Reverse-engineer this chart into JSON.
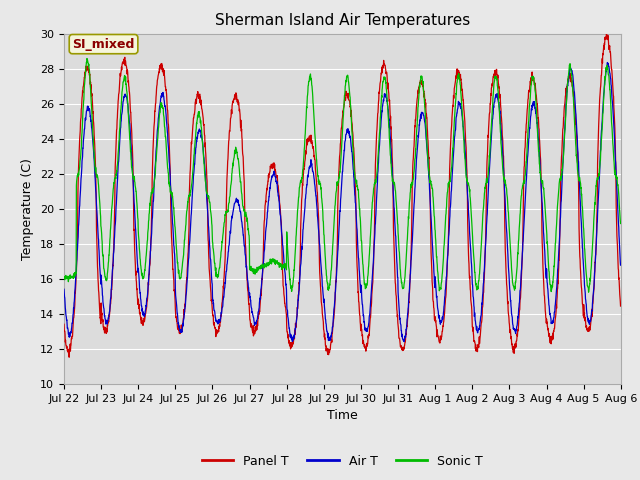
{
  "title": "Sherman Island Air Temperatures",
  "xlabel": "Time",
  "ylabel": "Temperature (C)",
  "ylim": [
    10,
    30
  ],
  "xlim": [
    0,
    15
  ],
  "fig_width": 6.4,
  "fig_height": 4.8,
  "dpi": 100,
  "background_color": "#e8e8e8",
  "plot_bg_color": "#dcdcdc",
  "grid_color": "#ffffff",
  "annotation_text": "SI_mixed",
  "annotation_bg": "#f5f5dc",
  "annotation_border": "#999900",
  "annotation_text_color": "#8b0000",
  "xtick_labels": [
    "Jul 22",
    "Jul 23",
    "Jul 24",
    "Jul 25",
    "Jul 26",
    "Jul 27",
    "Jul 28",
    "Jul 29",
    "Jul 30",
    "Jul 31",
    "Aug 1",
    "Aug 2",
    "Aug 3",
    "Aug 4",
    "Aug 5",
    "Aug 6"
  ],
  "line_colors": {
    "panel": "#cc0000",
    "air": "#0000cc",
    "sonic": "#00bb00"
  },
  "legend_labels": [
    "Panel T",
    "Air T",
    "Sonic T"
  ],
  "num_days": 15,
  "ppd": 144,
  "title_fontsize": 11,
  "label_fontsize": 9,
  "tick_fontsize": 8,
  "legend_fontsize": 9
}
